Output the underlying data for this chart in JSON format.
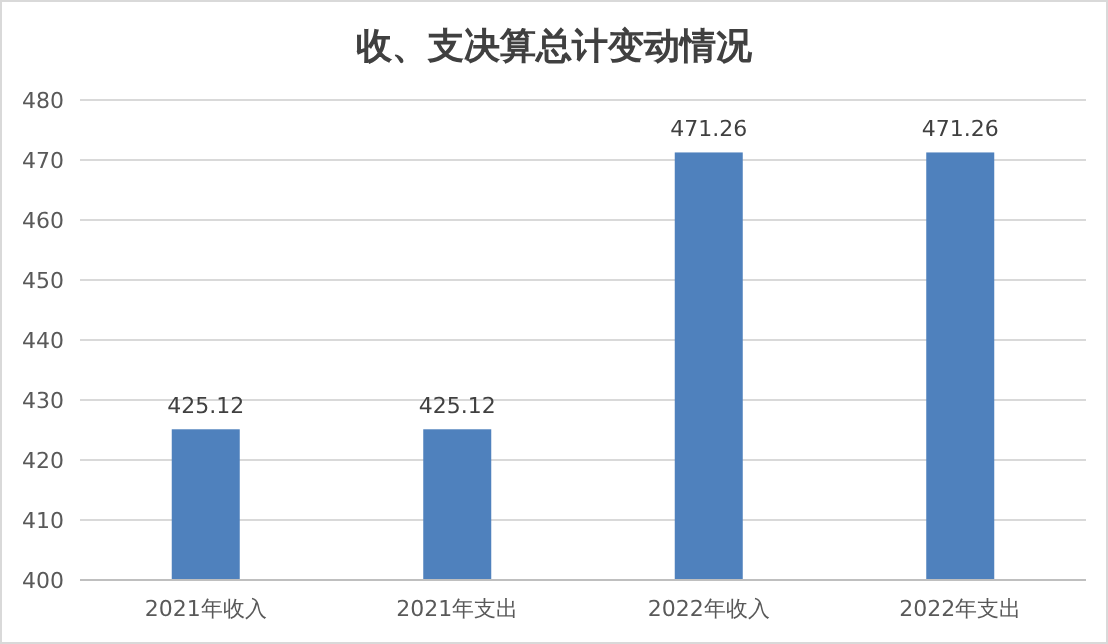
{
  "chart_data": {
    "type": "bar",
    "title": "收、支决算总计变动情况",
    "categories": [
      "2021年收入",
      "2021年支出",
      "2022年收入",
      "2022年支出"
    ],
    "values": [
      425.12,
      425.12,
      471.26,
      471.26
    ],
    "color": "#4f81bd",
    "ylim": [
      400,
      480
    ],
    "yticks": [
      400,
      410,
      420,
      430,
      440,
      450,
      460,
      470,
      480
    ],
    "grid": "y",
    "data_labels": true
  }
}
